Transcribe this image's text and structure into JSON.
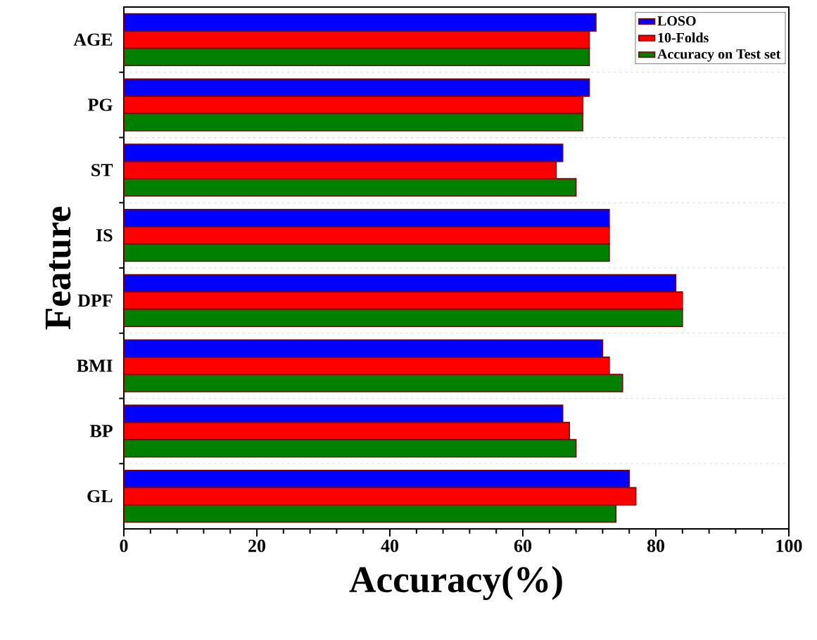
{
  "chart_data": {
    "type": "bar",
    "orientation": "horizontal",
    "xlabel": "Accuracy(%)",
    "ylabel": "Feature",
    "categories": [
      "AGE",
      "PG",
      "ST",
      "IS",
      "DPF",
      "BMI",
      "BP",
      "GL"
    ],
    "series": [
      {
        "name": "LOSO",
        "color": "#0000ff",
        "values": [
          71,
          70,
          66,
          73,
          83,
          72,
          66,
          76
        ]
      },
      {
        "name": "10-Folds",
        "color": "#ff0000",
        "values": [
          70,
          69,
          65,
          73,
          84,
          73,
          67,
          77
        ]
      },
      {
        "name": "Accuracy on Test set",
        "color": "#008000",
        "values": [
          70,
          69,
          68,
          73,
          84,
          75,
          68,
          74
        ]
      }
    ],
    "xlim": [
      0,
      100
    ],
    "xticks": [
      0,
      20,
      40,
      60,
      80,
      100
    ],
    "grid": "y",
    "legend": "top right"
  }
}
